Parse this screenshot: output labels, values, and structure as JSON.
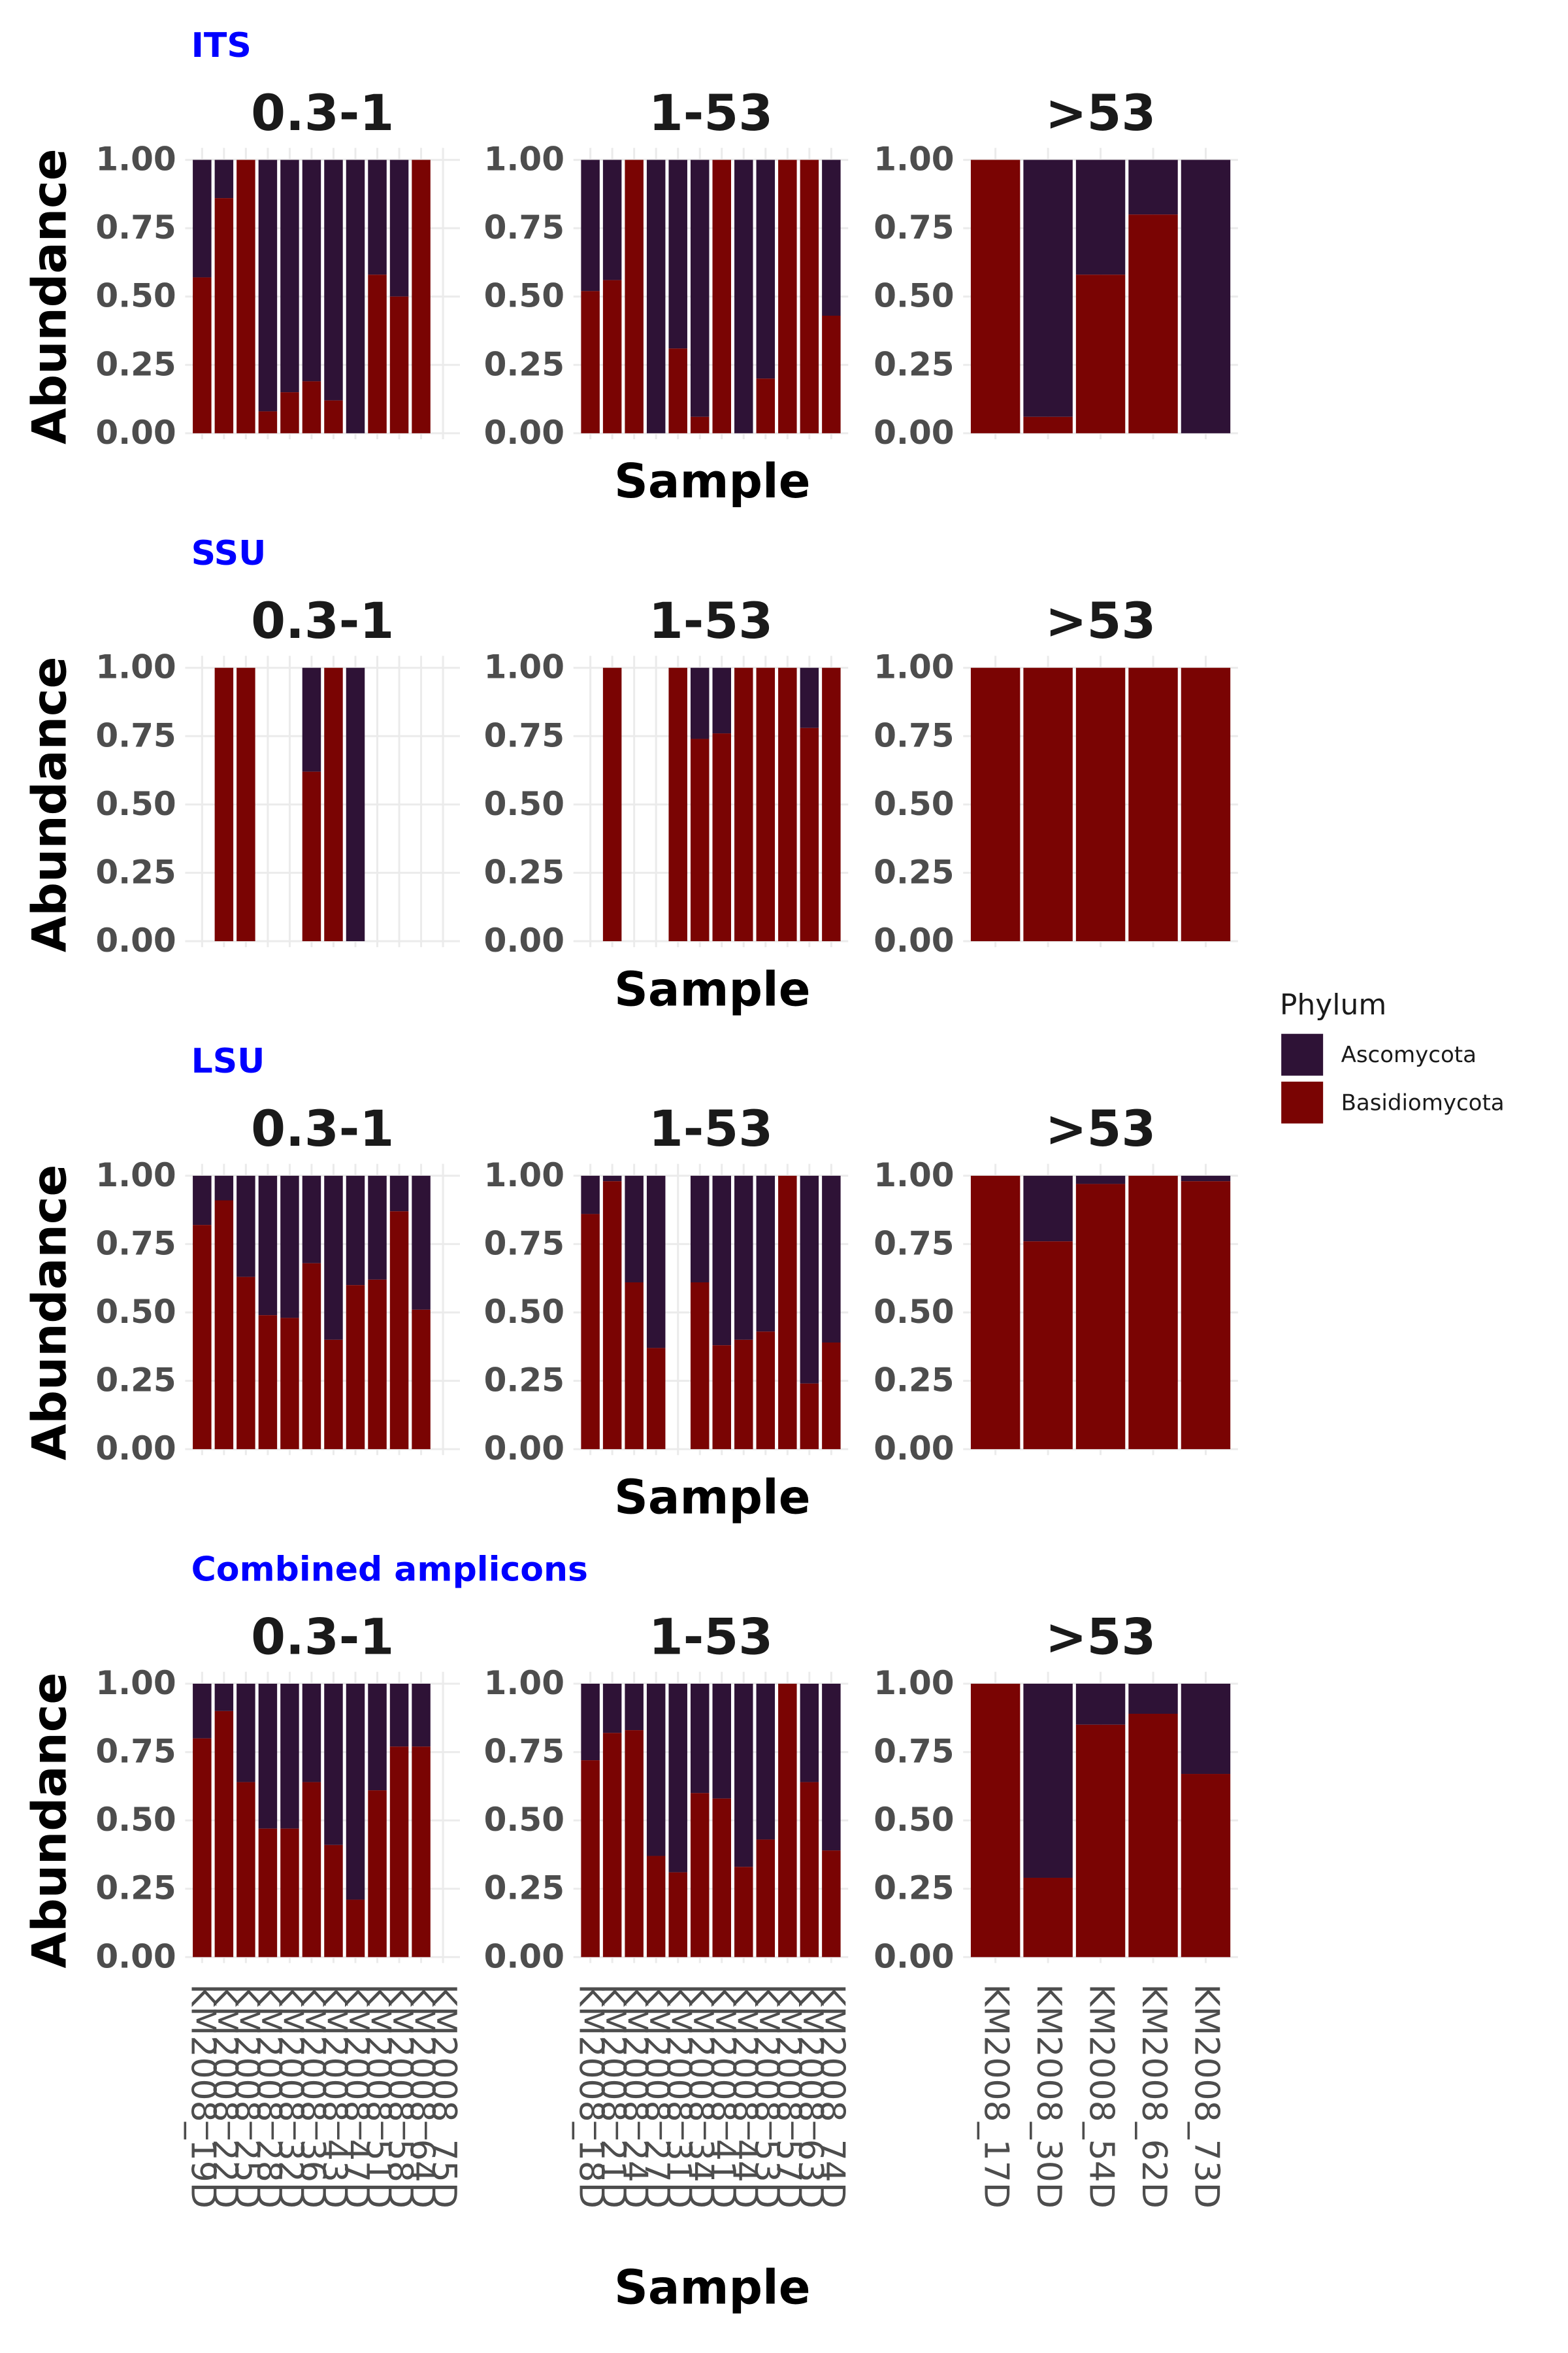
{
  "chart_data": {
    "type": "bar",
    "stacked": true,
    "ylim": [
      0,
      1
    ],
    "yticks": [
      "0.00",
      "0.25",
      "0.50",
      "0.75",
      "1.00"
    ],
    "ylabel": "Abundance",
    "xlabel": "Sample",
    "grid": true,
    "legend": {
      "title": "Phylum",
      "placement": "right",
      "items": [
        {
          "name": "Ascomycota",
          "color": "#2e1236"
        },
        {
          "name": "Basidiomycota",
          "color": "#7a0403"
        }
      ]
    },
    "facets": [
      "0.3-1",
      "1-53",
      ">53"
    ],
    "categories": [
      [
        "KM2008_19D",
        "KM2008_22D",
        "KM2008_25D",
        "KM2008_28D",
        "KM2008_32D",
        "KM2008_36D",
        "KM2008_43D",
        "KM2008_47D",
        "KM2008_51D",
        "KM2008_58D",
        "KM2008_64D",
        "KM2008_75D"
      ],
      [
        "KM2008_18D",
        "KM2008_21D",
        "KM2008_24D",
        "KM2008_27D",
        "KM2008_31D",
        "KM2008_34D",
        "KM2008_41D",
        "KM2008_44D",
        "KM2008_53D",
        "KM2008_57D",
        "KM2008_63D",
        "KM2008_74D"
      ],
      [
        "KM2008_17D",
        "KM2008_30D",
        "KM2008_54D",
        "KM2008_62D",
        "KM2008_73D"
      ]
    ],
    "sections": [
      {
        "title": "ITS",
        "basidiomycota": [
          [
            0.57,
            0.86,
            1.0,
            0.08,
            0.15,
            0.19,
            0.12,
            0.0,
            0.58,
            0.5,
            1.0,
            null
          ],
          [
            0.52,
            0.56,
            1.0,
            0.0,
            0.31,
            0.06,
            1.0,
            0.0,
            0.2,
            1.0,
            1.0,
            0.43
          ],
          [
            1.0,
            0.06,
            0.58,
            0.8,
            0.0
          ]
        ]
      },
      {
        "title": "SSU",
        "basidiomycota": [
          [
            null,
            1.0,
            1.0,
            null,
            null,
            0.62,
            1.0,
            0.0,
            null,
            null,
            null,
            null
          ],
          [
            null,
            1.0,
            null,
            null,
            1.0,
            0.74,
            0.76,
            1.0,
            1.0,
            1.0,
            0.78,
            1.0
          ],
          [
            1.0,
            1.0,
            1.0,
            1.0,
            1.0
          ]
        ]
      },
      {
        "title": "LSU",
        "basidiomycota": [
          [
            0.82,
            0.91,
            0.63,
            0.49,
            0.48,
            0.68,
            0.4,
            0.6,
            0.62,
            0.87,
            0.51,
            null
          ],
          [
            0.86,
            0.98,
            0.61,
            0.37,
            null,
            0.61,
            0.38,
            0.4,
            0.43,
            1.0,
            0.24,
            0.39
          ],
          [
            1.0,
            0.76,
            0.97,
            1.0,
            0.98
          ]
        ]
      },
      {
        "title": "Combined amplicons",
        "basidiomycota": [
          [
            0.8,
            0.9,
            0.64,
            0.47,
            0.47,
            0.64,
            0.41,
            0.21,
            0.61,
            0.77,
            0.77,
            null
          ],
          [
            0.72,
            0.82,
            0.83,
            0.37,
            0.31,
            0.6,
            0.58,
            0.33,
            0.43,
            1.0,
            0.64,
            0.39
          ],
          [
            1.0,
            0.29,
            0.85,
            0.89,
            0.67
          ]
        ]
      }
    ]
  }
}
